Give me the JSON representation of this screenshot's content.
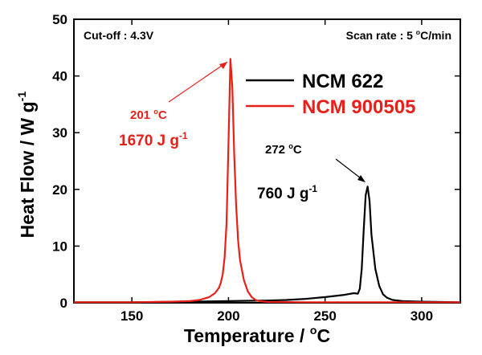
{
  "chart_data": {
    "type": "line",
    "title": "",
    "xlabel": "Temperature  /  °C",
    "ylabel": "Heat Flow  /  W g-1",
    "xlim": [
      120,
      320
    ],
    "ylim": [
      0,
      50
    ],
    "x_ticks": [
      150,
      200,
      250,
      300
    ],
    "y_ticks": [
      0,
      10,
      20,
      30,
      40,
      50
    ],
    "grid": false,
    "legend_position": "top-right",
    "conditions": {
      "cutoff": "Cut-off : 4.3V",
      "scan_rate_prefix": "Scan rate : 5 ",
      "scan_rate_sup": "o",
      "scan_rate_suffix": "C/min"
    },
    "series": [
      {
        "name": "NCM 622",
        "color": "#000000",
        "peak_temp_label": "272 ",
        "peak_temp_unit": "C",
        "peak_temp_sup": "o",
        "enthalpy_label": "760 J g",
        "enthalpy_sup": "-1",
        "x": [
          120,
          150,
          180,
          200,
          210,
          220,
          230,
          240,
          250,
          255,
          260,
          265,
          267,
          268,
          269,
          270,
          271,
          272,
          273,
          274,
          276,
          278,
          280,
          282,
          285,
          290,
          300,
          320
        ],
        "y": [
          0.1,
          0.1,
          0.2,
          0.3,
          0.35,
          0.4,
          0.5,
          0.7,
          1.0,
          1.2,
          1.4,
          1.7,
          1.6,
          2.5,
          6.0,
          13.0,
          19.0,
          20.5,
          18.0,
          12.0,
          6.0,
          3.0,
          1.5,
          0.9,
          0.5,
          0.3,
          0.2,
          0.1
        ]
      },
      {
        "name": "NCM 900505",
        "color": "#e8201a",
        "peak_temp_label": "201 ",
        "peak_temp_unit": "C",
        "peak_temp_sup": "o",
        "enthalpy_label": "1670 J g",
        "enthalpy_sup": "-1",
        "x": [
          120,
          150,
          170,
          180,
          185,
          190,
          193,
          195,
          196,
          197,
          198,
          199,
          200,
          201,
          202,
          203,
          204,
          205,
          206,
          208,
          210,
          212,
          214,
          216,
          220,
          240,
          260,
          280,
          300,
          320
        ],
        "y": [
          0.1,
          0.1,
          0.2,
          0.3,
          0.5,
          1.0,
          1.7,
          2.6,
          3.5,
          5.0,
          8.0,
          14.0,
          28.0,
          43.0,
          38.0,
          26.0,
          17.0,
          11.0,
          7.5,
          4.0,
          2.0,
          1.0,
          0.5,
          0.3,
          0.15,
          0.1,
          0.1,
          0.1,
          0.1,
          0.1
        ]
      }
    ]
  }
}
